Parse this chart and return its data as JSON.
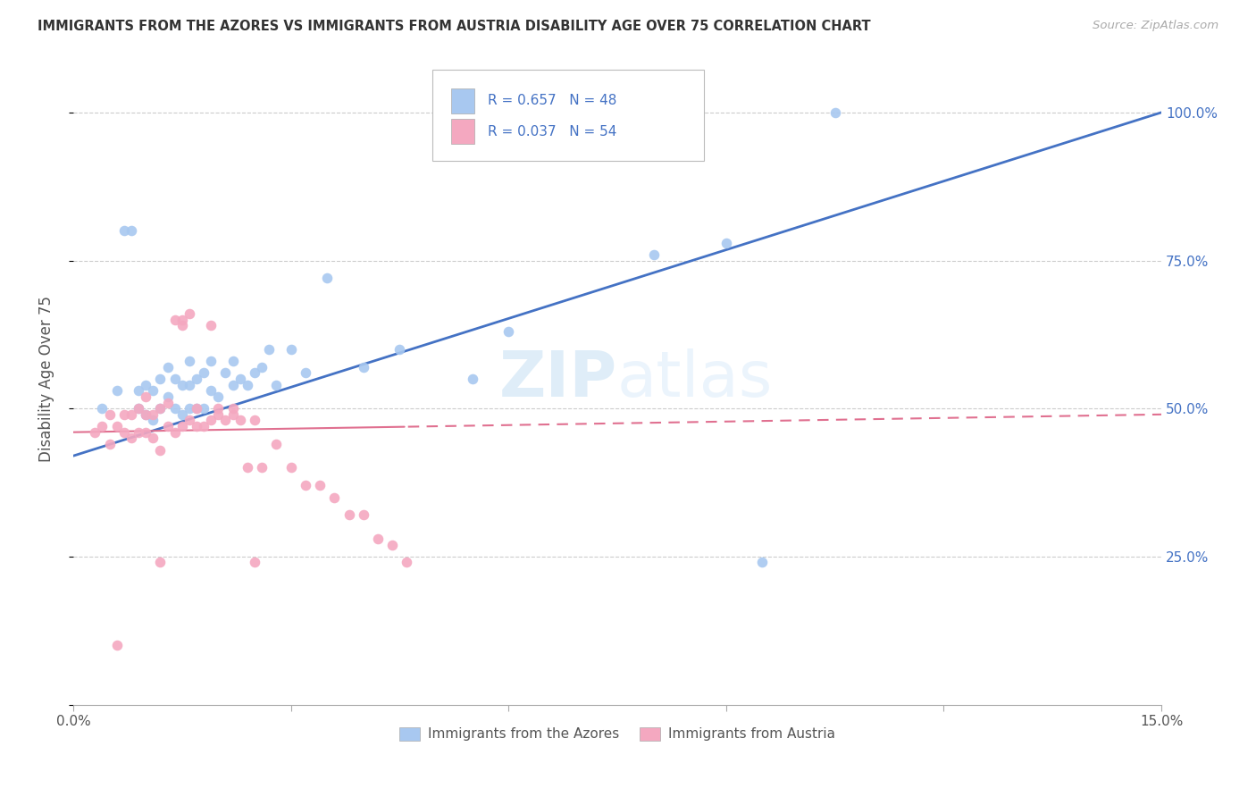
{
  "title": "IMMIGRANTS FROM THE AZORES VS IMMIGRANTS FROM AUSTRIA DISABILITY AGE OVER 75 CORRELATION CHART",
  "source": "Source: ZipAtlas.com",
  "ylabel": "Disability Age Over 75",
  "xlim": [
    0.0,
    0.15
  ],
  "ylim": [
    0.0,
    1.1
  ],
  "x_ticks": [
    0.0,
    0.03,
    0.06,
    0.09,
    0.12,
    0.15
  ],
  "y_ticks": [
    0.0,
    0.25,
    0.5,
    0.75,
    1.0
  ],
  "legend_label1": "Immigrants from the Azores",
  "legend_label2": "Immigrants from Austria",
  "R1": "0.657",
  "N1": "48",
  "R2": "0.037",
  "N2": "54",
  "color1": "#a8c8f0",
  "color2": "#f4a8c0",
  "line1_color": "#4472c4",
  "line2_color": "#e07090",
  "azores_x": [
    0.004,
    0.006,
    0.007,
    0.008,
    0.009,
    0.009,
    0.01,
    0.01,
    0.011,
    0.011,
    0.012,
    0.012,
    0.013,
    0.013,
    0.014,
    0.014,
    0.015,
    0.015,
    0.016,
    0.016,
    0.016,
    0.017,
    0.017,
    0.018,
    0.018,
    0.019,
    0.019,
    0.02,
    0.021,
    0.022,
    0.022,
    0.023,
    0.024,
    0.025,
    0.026,
    0.027,
    0.028,
    0.03,
    0.032,
    0.035,
    0.04,
    0.045,
    0.055,
    0.06,
    0.08,
    0.09,
    0.095,
    0.105
  ],
  "azores_y": [
    0.5,
    0.53,
    0.8,
    0.8,
    0.5,
    0.53,
    0.49,
    0.54,
    0.48,
    0.53,
    0.5,
    0.55,
    0.52,
    0.57,
    0.5,
    0.55,
    0.49,
    0.54,
    0.5,
    0.54,
    0.58,
    0.5,
    0.55,
    0.5,
    0.56,
    0.53,
    0.58,
    0.52,
    0.56,
    0.54,
    0.58,
    0.55,
    0.54,
    0.56,
    0.57,
    0.6,
    0.54,
    0.6,
    0.56,
    0.72,
    0.57,
    0.6,
    0.55,
    0.63,
    0.76,
    0.78,
    0.24,
    1.0
  ],
  "austria_x": [
    0.003,
    0.004,
    0.005,
    0.005,
    0.006,
    0.007,
    0.007,
    0.008,
    0.008,
    0.009,
    0.009,
    0.01,
    0.01,
    0.01,
    0.011,
    0.011,
    0.012,
    0.012,
    0.013,
    0.013,
    0.014,
    0.014,
    0.015,
    0.015,
    0.015,
    0.016,
    0.016,
    0.017,
    0.017,
    0.018,
    0.019,
    0.019,
    0.02,
    0.021,
    0.022,
    0.022,
    0.023,
    0.024,
    0.025,
    0.026,
    0.028,
    0.03,
    0.032,
    0.034,
    0.036,
    0.038,
    0.04,
    0.042,
    0.044,
    0.046,
    0.006,
    0.012,
    0.02,
    0.025
  ],
  "austria_y": [
    0.46,
    0.47,
    0.44,
    0.49,
    0.47,
    0.46,
    0.49,
    0.45,
    0.49,
    0.46,
    0.5,
    0.46,
    0.49,
    0.52,
    0.45,
    0.49,
    0.43,
    0.5,
    0.47,
    0.51,
    0.46,
    0.65,
    0.64,
    0.47,
    0.65,
    0.48,
    0.66,
    0.47,
    0.5,
    0.47,
    0.64,
    0.48,
    0.49,
    0.48,
    0.5,
    0.49,
    0.48,
    0.4,
    0.48,
    0.4,
    0.44,
    0.4,
    0.37,
    0.37,
    0.35,
    0.32,
    0.32,
    0.28,
    0.27,
    0.24,
    0.1,
    0.24,
    0.5,
    0.24
  ]
}
